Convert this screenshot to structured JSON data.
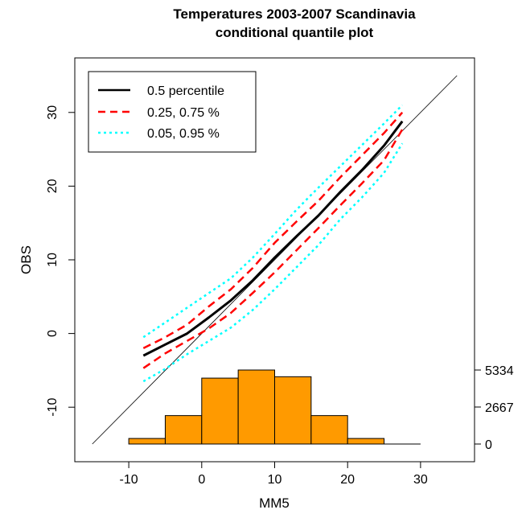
{
  "chart_data": {
    "type": "line",
    "title": "Temperatures 2003-2007 Scandinavia",
    "subtitle": "conditional quantile plot",
    "xlabel": "MM5",
    "ylabel": "OBS",
    "xlim": [
      -17.4,
      37.4
    ],
    "ylim": [
      -17.4,
      37.4
    ],
    "x_ticks": [
      -10,
      0,
      10,
      20,
      30
    ],
    "y_ticks": [
      -10,
      0,
      10,
      20,
      30
    ],
    "reference_line": {
      "x": [
        -15,
        35
      ],
      "y": [
        -15,
        35
      ],
      "color": "#000000"
    },
    "legend_position": "top-left",
    "series": [
      {
        "name": "0.5 percentile",
        "color": "#000000",
        "style": "solid",
        "x": [
          -8,
          -5,
          -2,
          1,
          4,
          7,
          10,
          13,
          16,
          19,
          22,
          25,
          27.5
        ],
        "y": [
          -3.0,
          -1.5,
          0.0,
          2.2,
          4.5,
          7.2,
          10.3,
          13.2,
          16.0,
          19.2,
          22.2,
          25.5,
          28.8
        ]
      },
      {
        "name": "0.25, 0.75 %",
        "color": "#ff0000",
        "style": "dashed",
        "x": [
          -8,
          -5,
          -2,
          1,
          4,
          7,
          10,
          13,
          16,
          19,
          22,
          25,
          27.5
        ],
        "y": [
          -2.0,
          -0.5,
          1.2,
          3.7,
          6.0,
          8.9,
          12.3,
          15.2,
          18.0,
          21.2,
          24.2,
          27.2,
          30.0
        ]
      },
      {
        "name": "",
        "color": "#ff0000",
        "style": "dashed",
        "x": [
          -8,
          -5,
          -2,
          1,
          4,
          7,
          10,
          13,
          16,
          19,
          22,
          25,
          27.5
        ],
        "y": [
          -4.7,
          -2.7,
          -1.0,
          0.7,
          2.8,
          5.5,
          8.3,
          11.3,
          14.3,
          17.4,
          20.4,
          23.5,
          27.7
        ]
      },
      {
        "name": "0.05, 0.95 %",
        "color": "#00ffff",
        "style": "dotted",
        "x": [
          -8,
          -5,
          -2,
          1,
          4,
          7,
          10,
          13,
          16,
          19,
          22,
          25,
          27.5
        ],
        "y": [
          -0.5,
          1.5,
          3.5,
          5.5,
          7.5,
          10.3,
          13.5,
          16.8,
          19.8,
          22.7,
          25.6,
          28.5,
          31.0
        ]
      },
      {
        "name": "",
        "color": "#00ffff",
        "style": "dotted",
        "x": [
          -8,
          -5,
          -2,
          1,
          4,
          7,
          10,
          13,
          16,
          19,
          22,
          25,
          27.5
        ],
        "y": [
          -6.5,
          -4.8,
          -2.8,
          -1.0,
          0.8,
          3.2,
          6.0,
          9.0,
          12.0,
          15.5,
          18.5,
          21.8,
          25.8
        ]
      }
    ],
    "histogram": {
      "color": "#ff9a00",
      "bin_edges": [
        -10,
        -5,
        0,
        5,
        10,
        15,
        20,
        25
      ],
      "counts": [
        400,
        2050,
        4750,
        5334,
        4850,
        2050,
        400
      ],
      "tail_line_to": 30,
      "right_axis_ticks": [
        0,
        2667,
        5334
      ],
      "right_axis_tick_labels": [
        "0",
        "2667",
        "5334"
      ]
    }
  }
}
